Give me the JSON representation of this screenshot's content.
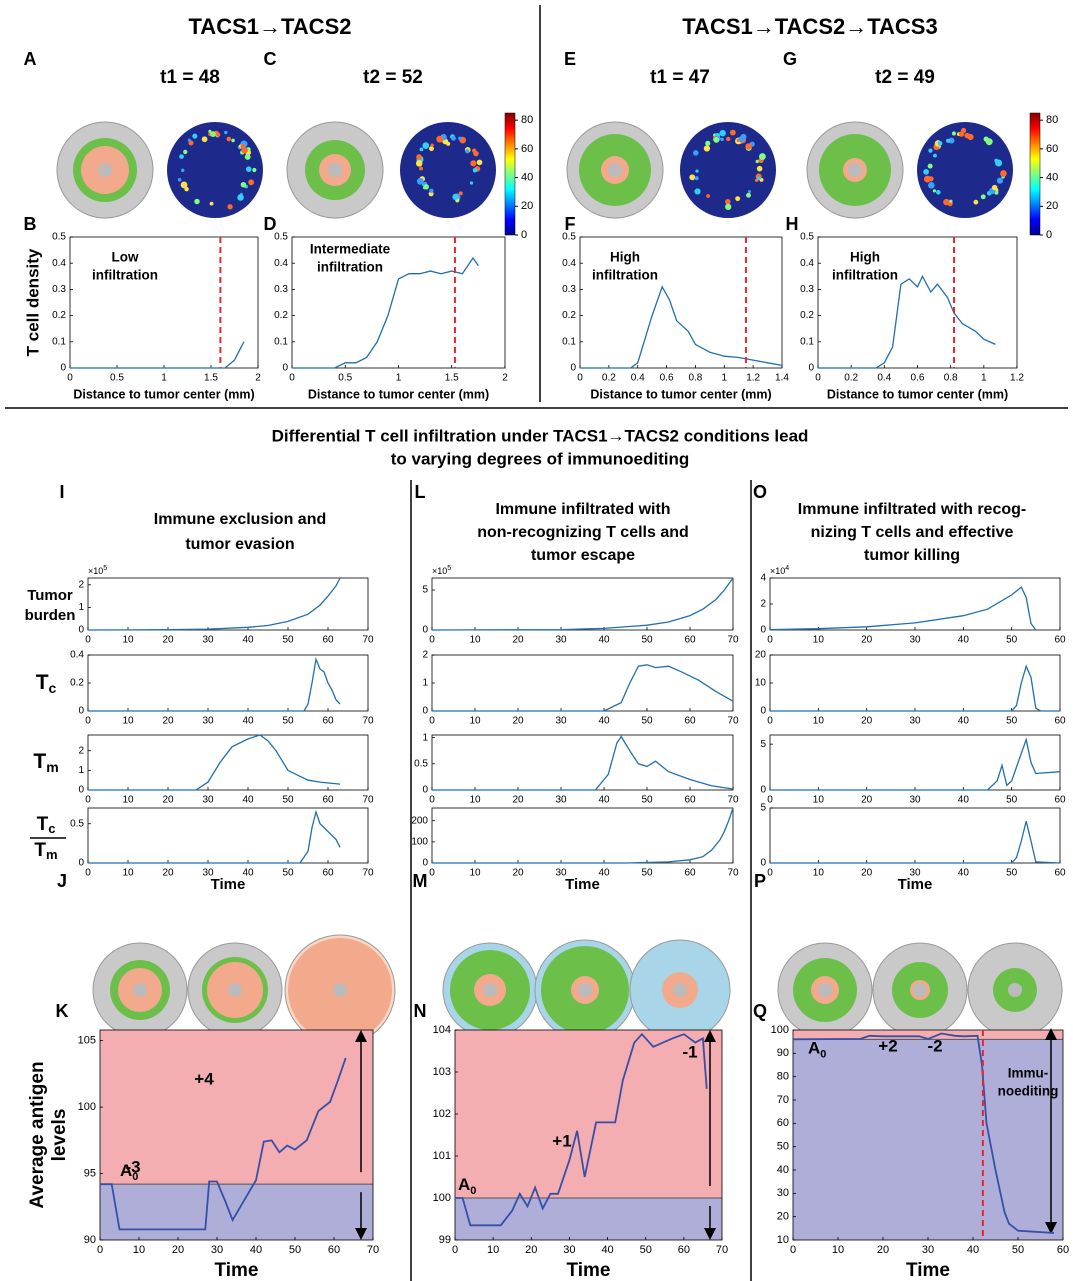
{
  "headers": [
    "TACS1→TACS2",
    "TACS1→TACS2→TACS3"
  ],
  "section_title": [
    "Differential T cell infiltration under TACS1→TACS2 conditions lead",
    "to varying degrees of immunoediting"
  ],
  "panel_letters": [
    "A",
    "B",
    "C",
    "D",
    "E",
    "F",
    "G",
    "H",
    "I",
    "J",
    "K",
    "L",
    "M",
    "N",
    "O",
    "P",
    "Q"
  ],
  "time_labels": [
    "t1 = 48",
    "t2 = 52",
    "t1 = 47",
    "t2 = 49"
  ],
  "colorbars": [
    {
      "lim": [
        0,
        85
      ],
      "ticks": [
        0,
        20,
        40,
        60,
        80
      ]
    },
    {
      "lim": [
        0,
        85
      ],
      "ticks": [
        0,
        20,
        40,
        60,
        80
      ]
    }
  ],
  "column_titles": [
    [
      "Immune exclusion and",
      "tumor evasion"
    ],
    [
      "Immune infiltrated with",
      "non-recognizing T cells and",
      "tumor escape"
    ],
    [
      "Immune infiltrated with recog-",
      "nizing T cells and effective",
      "tumor killing"
    ]
  ],
  "row_labels": [
    {
      "lines": [
        "Tumor",
        "burden"
      ]
    },
    {
      "text": "T",
      "sub": "c"
    },
    {
      "text": "T",
      "sub": "m"
    },
    {
      "num": {
        "text": "T",
        "sub": "c"
      },
      "den": {
        "text": "T",
        "sub": "m"
      }
    }
  ],
  "chart_data": [
    {
      "type": "line",
      "x": [
        0,
        1.5,
        1.65,
        1.75,
        1.85
      ],
      "values": [
        0,
        0,
        0,
        0.03,
        0.1
      ],
      "xlim": [
        0,
        2
      ],
      "ylim": [
        0,
        0.5
      ],
      "xticks": [
        0,
        0.5,
        1,
        1.5,
        2
      ],
      "yticks": [
        0,
        0.1,
        0.2,
        0.3,
        0.4,
        0.5
      ],
      "color": "#1f6fb2",
      "vline": 1.6,
      "vline_color": "#e8262b",
      "xlabel": "Distance to tumor center (mm)",
      "ylabel": "T cell density",
      "annotations": [
        {
          "lines": [
            "Low",
            "infiltration"
          ],
          "color": "#000000"
        }
      ]
    },
    {
      "type": "line",
      "x": [
        0,
        0.4,
        0.5,
        0.6,
        0.7,
        0.8,
        0.9,
        1.0,
        1.1,
        1.2,
        1.3,
        1.4,
        1.5,
        1.6,
        1.7,
        1.75
      ],
      "values": [
        0,
        0,
        0.02,
        0.02,
        0.04,
        0.1,
        0.2,
        0.34,
        0.36,
        0.36,
        0.37,
        0.36,
        0.37,
        0.36,
        0.42,
        0.39
      ],
      "xlim": [
        0,
        2
      ],
      "ylim": [
        0,
        0.5
      ],
      "xticks": [
        0,
        0.5,
        1,
        1.5,
        2
      ],
      "yticks": [
        0,
        0.1,
        0.2,
        0.3,
        0.4,
        0.5
      ],
      "color": "#1f6fb2",
      "vline": 1.53,
      "vline_color": "#e8262b",
      "xlabel": "Distance to tumor center (mm)",
      "annotations": [
        {
          "lines": [
            "Intermediate",
            "infiltration"
          ],
          "color": "#000000"
        }
      ]
    },
    {
      "type": "line",
      "x": [
        0,
        0.35,
        0.4,
        0.5,
        0.57,
        0.62,
        0.67,
        0.75,
        0.8,
        0.9,
        1.0,
        1.1,
        1.2,
        1.3,
        1.4
      ],
      "values": [
        0,
        0,
        0.02,
        0.2,
        0.31,
        0.26,
        0.18,
        0.14,
        0.09,
        0.06,
        0.045,
        0.04,
        0.03,
        0.02,
        0.01
      ],
      "xlim": [
        0,
        1.4
      ],
      "ylim": [
        0,
        0.5
      ],
      "xticks": [
        0,
        0.2,
        0.4,
        0.6,
        0.8,
        1,
        1.2,
        1.4
      ],
      "yticks": [
        0,
        0.1,
        0.2,
        0.3,
        0.4,
        0.5
      ],
      "color": "#1f6fb2",
      "vline": 1.15,
      "vline_color": "#e8262b",
      "xlabel": "Distance to tumor center (mm)",
      "annotations": [
        {
          "lines": [
            "High",
            "infiltration"
          ],
          "color": "#000000"
        }
      ]
    },
    {
      "type": "line",
      "x": [
        0,
        0.35,
        0.4,
        0.45,
        0.5,
        0.55,
        0.6,
        0.63,
        0.68,
        0.72,
        0.78,
        0.82,
        0.87,
        0.95,
        1.0,
        1.07
      ],
      "values": [
        0,
        0,
        0.02,
        0.08,
        0.32,
        0.34,
        0.31,
        0.35,
        0.29,
        0.32,
        0.27,
        0.21,
        0.17,
        0.14,
        0.11,
        0.09
      ],
      "xlim": [
        0,
        1.2
      ],
      "ylim": [
        0,
        0.5
      ],
      "xticks": [
        0,
        0.2,
        0.4,
        0.6,
        0.8,
        1,
        1.2
      ],
      "yticks": [
        0,
        0.1,
        0.2,
        0.3,
        0.4,
        0.5
      ],
      "color": "#1f6fb2",
      "vline": 0.82,
      "vline_color": "#e8262b",
      "xlabel": "Distance to tumor center (mm)",
      "annotations": [
        {
          "lines": [
            "High",
            "infiltration"
          ],
          "color": "#000000"
        }
      ]
    },
    {
      "type": "line",
      "x": [
        0,
        10,
        20,
        30,
        40,
        45,
        50,
        55,
        58,
        60,
        62,
        63
      ],
      "values": [
        0,
        0.005,
        0.015,
        0.04,
        0.12,
        0.2,
        0.38,
        0.7,
        1.1,
        1.5,
        1.95,
        2.3
      ],
      "xlim": [
        0,
        70
      ],
      "ylim": [
        0,
        2.3
      ],
      "xticks": [
        0,
        10,
        20,
        30,
        40,
        50,
        60,
        70
      ],
      "yticks": [
        0,
        1,
        2
      ],
      "color": "#1f6fb2",
      "y_multiplier": {
        "text": "×10",
        "exp": "5"
      }
    },
    {
      "type": "line",
      "x": [
        0,
        54,
        55,
        56,
        57,
        58,
        59,
        60,
        61,
        62,
        63
      ],
      "values": [
        0,
        0,
        0.05,
        0.2,
        0.37,
        0.3,
        0.28,
        0.2,
        0.15,
        0.08,
        0.05
      ],
      "xlim": [
        0,
        70
      ],
      "ylim": [
        0,
        0.4
      ],
      "xticks": [
        0,
        10,
        20,
        30,
        40,
        50,
        60,
        70
      ],
      "yticks": [
        0,
        0.2,
        0.4
      ],
      "color": "#1f6fb2"
    },
    {
      "type": "line",
      "x": [
        0,
        27,
        30,
        33,
        36,
        40,
        43,
        45,
        47,
        50,
        53,
        55,
        58,
        63
      ],
      "values": [
        0,
        0,
        0.4,
        1.4,
        2.2,
        2.6,
        2.8,
        2.5,
        2.0,
        1.0,
        0.7,
        0.5,
        0.4,
        0.3
      ],
      "xlim": [
        0,
        70
      ],
      "ylim": [
        0,
        2.8
      ],
      "xticks": [
        0,
        10,
        20,
        30,
        40,
        50,
        60,
        70
      ],
      "yticks": [
        0,
        1,
        2
      ],
      "color": "#1f6fb2"
    },
    {
      "type": "line",
      "x": [
        0,
        53,
        55,
        56,
        57,
        58,
        59,
        60,
        61,
        62,
        63
      ],
      "values": [
        0,
        0,
        0.15,
        0.45,
        0.65,
        0.5,
        0.45,
        0.4,
        0.35,
        0.3,
        0.2
      ],
      "xlim": [
        0,
        70
      ],
      "ylim": [
        0,
        0.7
      ],
      "xticks": [
        0,
        10,
        20,
        30,
        40,
        50,
        60,
        70
      ],
      "yticks": [
        0,
        0.5
      ],
      "color": "#1f6fb2",
      "xlabel": "Time"
    },
    {
      "type": "line",
      "x": [
        0,
        30,
        40,
        50,
        55,
        60,
        63,
        66,
        68,
        70
      ],
      "values": [
        0,
        0.05,
        0.2,
        0.6,
        1.0,
        1.8,
        2.6,
        3.8,
        5.0,
        6.5
      ],
      "xlim": [
        0,
        70
      ],
      "ylim": [
        0,
        6.5
      ],
      "xticks": [
        0,
        10,
        20,
        30,
        40,
        50,
        60,
        70
      ],
      "yticks": [
        0,
        5
      ],
      "color": "#1f6fb2",
      "y_multiplier": {
        "text": "×10",
        "exp": "5"
      }
    },
    {
      "type": "line",
      "x": [
        0,
        40,
        44,
        46,
        48,
        50,
        52,
        55,
        58,
        62,
        66,
        70
      ],
      "values": [
        0,
        0,
        0.3,
        1.0,
        1.6,
        1.65,
        1.55,
        1.6,
        1.4,
        1.1,
        0.7,
        0.35
      ],
      "xlim": [
        0,
        70
      ],
      "ylim": [
        0,
        2
      ],
      "xticks": [
        0,
        10,
        20,
        30,
        40,
        50,
        60,
        70
      ],
      "yticks": [
        0,
        1,
        2
      ],
      "color": "#1f6fb2"
    },
    {
      "type": "line",
      "x": [
        0,
        38,
        41,
        43,
        44,
        46,
        48,
        50,
        52,
        55,
        60,
        65,
        70
      ],
      "values": [
        0,
        0,
        0.3,
        0.9,
        1.02,
        0.75,
        0.5,
        0.45,
        0.55,
        0.35,
        0.2,
        0.08,
        0.02
      ],
      "xlim": [
        0,
        70
      ],
      "ylim": [
        0,
        1.05
      ],
      "xticks": [
        0,
        10,
        20,
        30,
        40,
        50,
        60,
        70
      ],
      "yticks": [
        0,
        0.5,
        1
      ],
      "color": "#1f6fb2"
    },
    {
      "type": "line",
      "x": [
        0,
        45,
        55,
        60,
        63,
        65,
        67,
        68,
        69,
        70
      ],
      "values": [
        0,
        0,
        5,
        15,
        30,
        60,
        110,
        150,
        200,
        260
      ],
      "xlim": [
        0,
        70
      ],
      "ylim": [
        0,
        260
      ],
      "xticks": [
        0,
        10,
        20,
        30,
        40,
        50,
        60,
        70
      ],
      "yticks": [
        0,
        100,
        200
      ],
      "color": "#1f6fb2",
      "xlabel": "Time"
    },
    {
      "type": "line",
      "x": [
        0,
        10,
        20,
        30,
        40,
        45,
        50,
        52,
        53,
        54,
        55
      ],
      "values": [
        0.02,
        0.1,
        0.25,
        0.55,
        1.1,
        1.6,
        2.7,
        3.3,
        2.5,
        0.5,
        0
      ],
      "xlim": [
        0,
        60
      ],
      "ylim": [
        0,
        4
      ],
      "xticks": [
        0,
        10,
        20,
        30,
        40,
        50,
        60
      ],
      "yticks": [
        0,
        2,
        4
      ],
      "color": "#1f6fb2",
      "y_multiplier": {
        "text": "×10",
        "exp": "4"
      }
    },
    {
      "type": "line",
      "x": [
        0,
        50,
        51,
        52,
        53,
        54,
        55,
        56,
        60
      ],
      "values": [
        0,
        0,
        2,
        10,
        16,
        12,
        1,
        0,
        0
      ],
      "xlim": [
        0,
        60
      ],
      "ylim": [
        0,
        20
      ],
      "xticks": [
        0,
        10,
        20,
        30,
        40,
        50,
        60
      ],
      "yticks": [
        0,
        10,
        20
      ],
      "color": "#1f6fb2"
    },
    {
      "type": "line",
      "x": [
        0,
        45,
        47,
        48,
        49,
        50,
        51,
        52,
        53,
        54,
        55,
        60
      ],
      "values": [
        0,
        0,
        1,
        2.7,
        0.5,
        1,
        2.5,
        4,
        5.5,
        3,
        1.8,
        2
      ],
      "xlim": [
        0,
        60
      ],
      "ylim": [
        0,
        6
      ],
      "xticks": [
        0,
        10,
        20,
        30,
        40,
        50,
        60
      ],
      "yticks": [
        0,
        5
      ],
      "color": "#1f6fb2"
    },
    {
      "type": "line",
      "x": [
        0,
        50,
        51,
        52,
        53,
        54,
        55,
        60
      ],
      "values": [
        0,
        0,
        0.5,
        2,
        3.8,
        2,
        0.1,
        0
      ],
      "xlim": [
        0,
        60
      ],
      "ylim": [
        0,
        5
      ],
      "xticks": [
        0,
        10,
        20,
        30,
        40,
        50,
        60
      ],
      "yticks": [
        0,
        5
      ],
      "color": "#1f6fb2",
      "xlabel": "Time"
    },
    {
      "type": "line",
      "x": [
        0,
        3,
        5,
        10,
        20,
        27,
        28,
        30,
        32,
        34,
        37,
        40,
        42,
        44,
        46,
        48,
        50,
        53,
        56,
        59,
        61,
        63
      ],
      "values": [
        94.2,
        94.2,
        90.8,
        90.8,
        90.8,
        90.8,
        94.4,
        94.4,
        93,
        91.5,
        93,
        94.5,
        97.4,
        97.5,
        96.6,
        97.1,
        96.8,
        97.5,
        99.7,
        100.4,
        102,
        103.7
      ],
      "xlim": [
        0,
        70
      ],
      "ylim": [
        90,
        105.8
      ],
      "xticks": [
        0,
        10,
        20,
        30,
        40,
        50,
        60,
        70
      ],
      "yticks": [
        90,
        95,
        100,
        105
      ],
      "color": "#3550a8",
      "ref": {
        "value": 94.2,
        "label": "A",
        "sub": "0",
        "above_color": "#f4adb0",
        "below_color": "#afaed9"
      },
      "xlabel": "Time",
      "ylabel": [
        "Average antigen",
        "levels"
      ],
      "annotations": [
        {
          "lines": [
            "+4"
          ],
          "color": "#e8262b"
        },
        {
          "lines": [
            "-3"
          ],
          "color": "#2c2f9a"
        }
      ]
    },
    {
      "type": "line",
      "x": [
        0,
        2,
        4,
        6,
        12,
        15,
        17,
        19,
        21,
        23,
        25,
        27,
        30,
        32,
        34,
        37,
        42,
        44,
        47,
        49,
        52,
        57,
        60,
        63,
        65,
        66
      ],
      "values": [
        100,
        100,
        99.35,
        99.35,
        99.35,
        99.7,
        100.1,
        99.8,
        100.25,
        99.75,
        100.1,
        100.1,
        100.9,
        101.6,
        100.5,
        101.8,
        101.8,
        102.8,
        103.7,
        103.9,
        103.6,
        103.8,
        103.9,
        103.7,
        103.8,
        102.6
      ],
      "xlim": [
        0,
        70
      ],
      "ylim": [
        99,
        104
      ],
      "xticks": [
        0,
        10,
        20,
        30,
        40,
        50,
        60,
        70
      ],
      "yticks": [
        99,
        100,
        101,
        102,
        103,
        104
      ],
      "color": "#3550a8",
      "ref": {
        "value": 100,
        "label": "A",
        "sub": "0",
        "above_color": "#f4adb0",
        "below_color": "#afaed9"
      },
      "xlabel": "Time",
      "annotations": [
        {
          "lines": [
            "+1"
          ],
          "color": "#e8262b"
        },
        {
          "lines": [
            "-1"
          ],
          "color": "#2c2f9a"
        }
      ]
    },
    {
      "type": "line",
      "x": [
        0,
        15,
        17,
        20,
        28,
        30,
        33,
        36,
        38,
        41,
        42,
        43,
        45,
        47,
        48,
        50,
        58
      ],
      "values": [
        96,
        96.2,
        97.5,
        97.3,
        97.3,
        96.2,
        98.5,
        97.5,
        97.3,
        97.5,
        85,
        60,
        40,
        22,
        17,
        14,
        13
      ],
      "xlim": [
        0,
        60
      ],
      "ylim": [
        10,
        100
      ],
      "xticks": [
        0,
        10,
        20,
        30,
        40,
        50,
        60
      ],
      "yticks": [
        10,
        20,
        30,
        40,
        50,
        60,
        70,
        80,
        90,
        100
      ],
      "color": "#3550a8",
      "vline": 42.2,
      "vline_color": "#e8262b",
      "ref": {
        "value": 96,
        "label": "A",
        "sub": "0",
        "above_color": "#f4adb0",
        "below_color": "#afaed9"
      },
      "xlabel": "Time",
      "annotations": [
        {
          "lines": [
            "+2"
          ],
          "color": "#e8262b"
        },
        {
          "lines": [
            "-2"
          ],
          "color": "#2c2f9a"
        },
        {
          "lines": [
            "Immu-",
            "noediting"
          ],
          "color": "#000000"
        }
      ]
    }
  ]
}
